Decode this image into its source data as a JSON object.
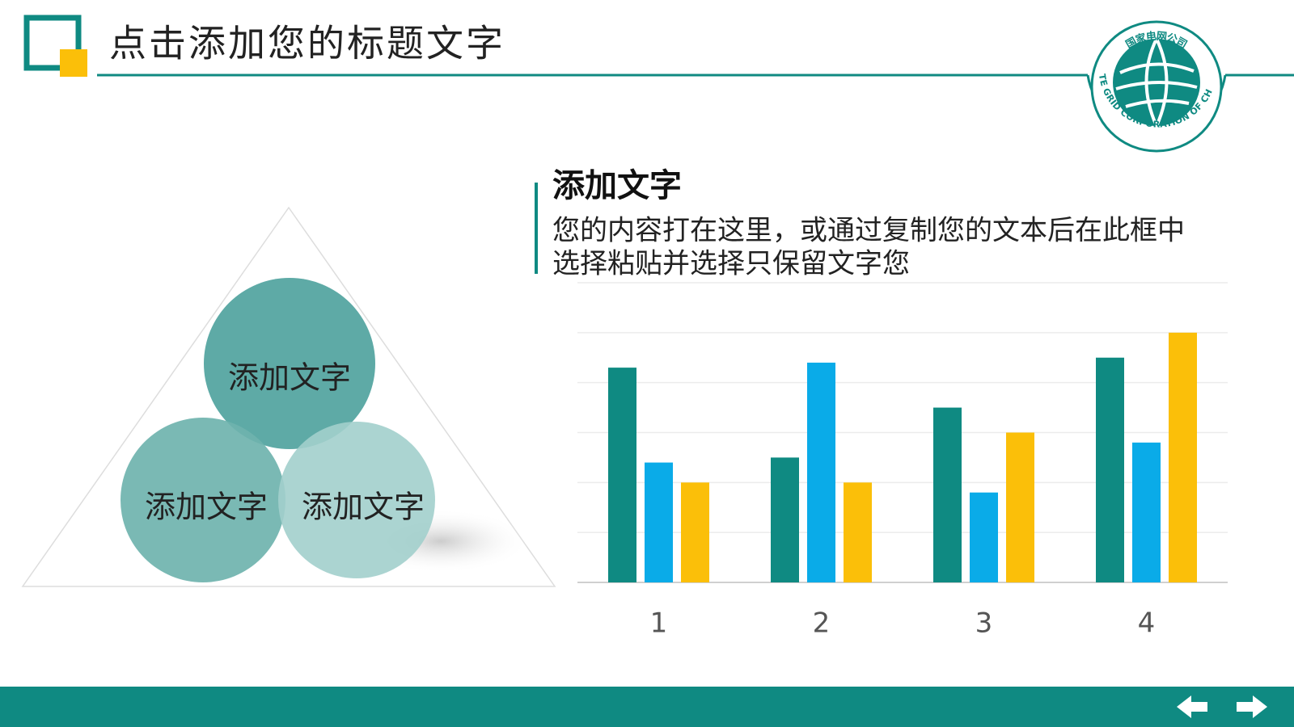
{
  "header": {
    "title": "点击添加您的标题文字"
  },
  "logo": {
    "cn": "国家电网公司",
    "en": "STATE GRID CORPORATION OF CHINA"
  },
  "text_block": {
    "heading": "添加文字",
    "body_lines": [
      "您的内容打在这里，或通过复制您的文本后在此框中",
      "选择粘贴并选择只保留文字您"
    ]
  },
  "circles": [
    {
      "label": "添加文字"
    },
    {
      "label": "添加文字"
    },
    {
      "label": "添加文字"
    }
  ],
  "chart_data": {
    "type": "bar",
    "categories": [
      "1",
      "2",
      "3",
      "4"
    ],
    "series": [
      {
        "color": "#0f8a82",
        "values": [
          4.3,
          2.5,
          3.5,
          4.5
        ]
      },
      {
        "color": "#0aabe8",
        "values": [
          2.4,
          4.4,
          1.8,
          2.8
        ]
      },
      {
        "color": "#fbbf09",
        "values": [
          2,
          2,
          3,
          5
        ]
      }
    ],
    "ylim": [
      0,
      6
    ],
    "yticks": [
      0,
      1,
      2,
      3,
      4,
      5,
      6
    ],
    "grid": true
  }
}
